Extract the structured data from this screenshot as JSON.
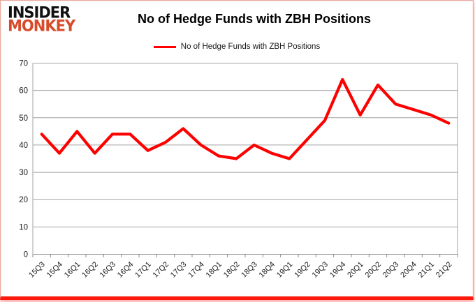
{
  "logo": {
    "line1": "INSIDER",
    "line2": "MONKEY"
  },
  "header": {
    "title": "No of Hedge Funds with ZBH Positions"
  },
  "legend": {
    "label": "No of Hedge Funds with ZBH Positions"
  },
  "colors": {
    "line": "#fe0000",
    "logo_monkey": "#d84b2a",
    "gridline": "#a3a3a3",
    "axis": "#8a8a8a",
    "bottom_bar": "#fb1b0e"
  },
  "chart_data": {
    "type": "line",
    "title": "No of Hedge Funds with ZBH Positions",
    "series_name": "No of Hedge Funds with ZBH Positions",
    "categories": [
      "15Q3",
      "15Q4",
      "16Q1",
      "16Q2",
      "16Q3",
      "16Q4",
      "17Q1",
      "17Q2",
      "17Q3",
      "17Q4",
      "18Q1",
      "18Q2",
      "18Q3",
      "18Q4",
      "19Q1",
      "19Q2",
      "19Q3",
      "19Q4",
      "20Q1",
      "20Q2",
      "20Q3",
      "20Q4",
      "21Q1",
      "21Q2"
    ],
    "values": [
      44,
      37,
      45,
      37,
      44,
      44,
      38,
      41,
      46,
      40,
      36,
      35,
      40,
      37,
      35,
      42,
      49,
      64,
      51,
      62,
      55,
      53,
      51,
      48
    ],
    "xlabel": "",
    "ylabel": "",
    "ylim": [
      0,
      70
    ],
    "ytick_step": 10,
    "grid": true,
    "line_color": "#fe0000",
    "legend_position": "top-center"
  }
}
